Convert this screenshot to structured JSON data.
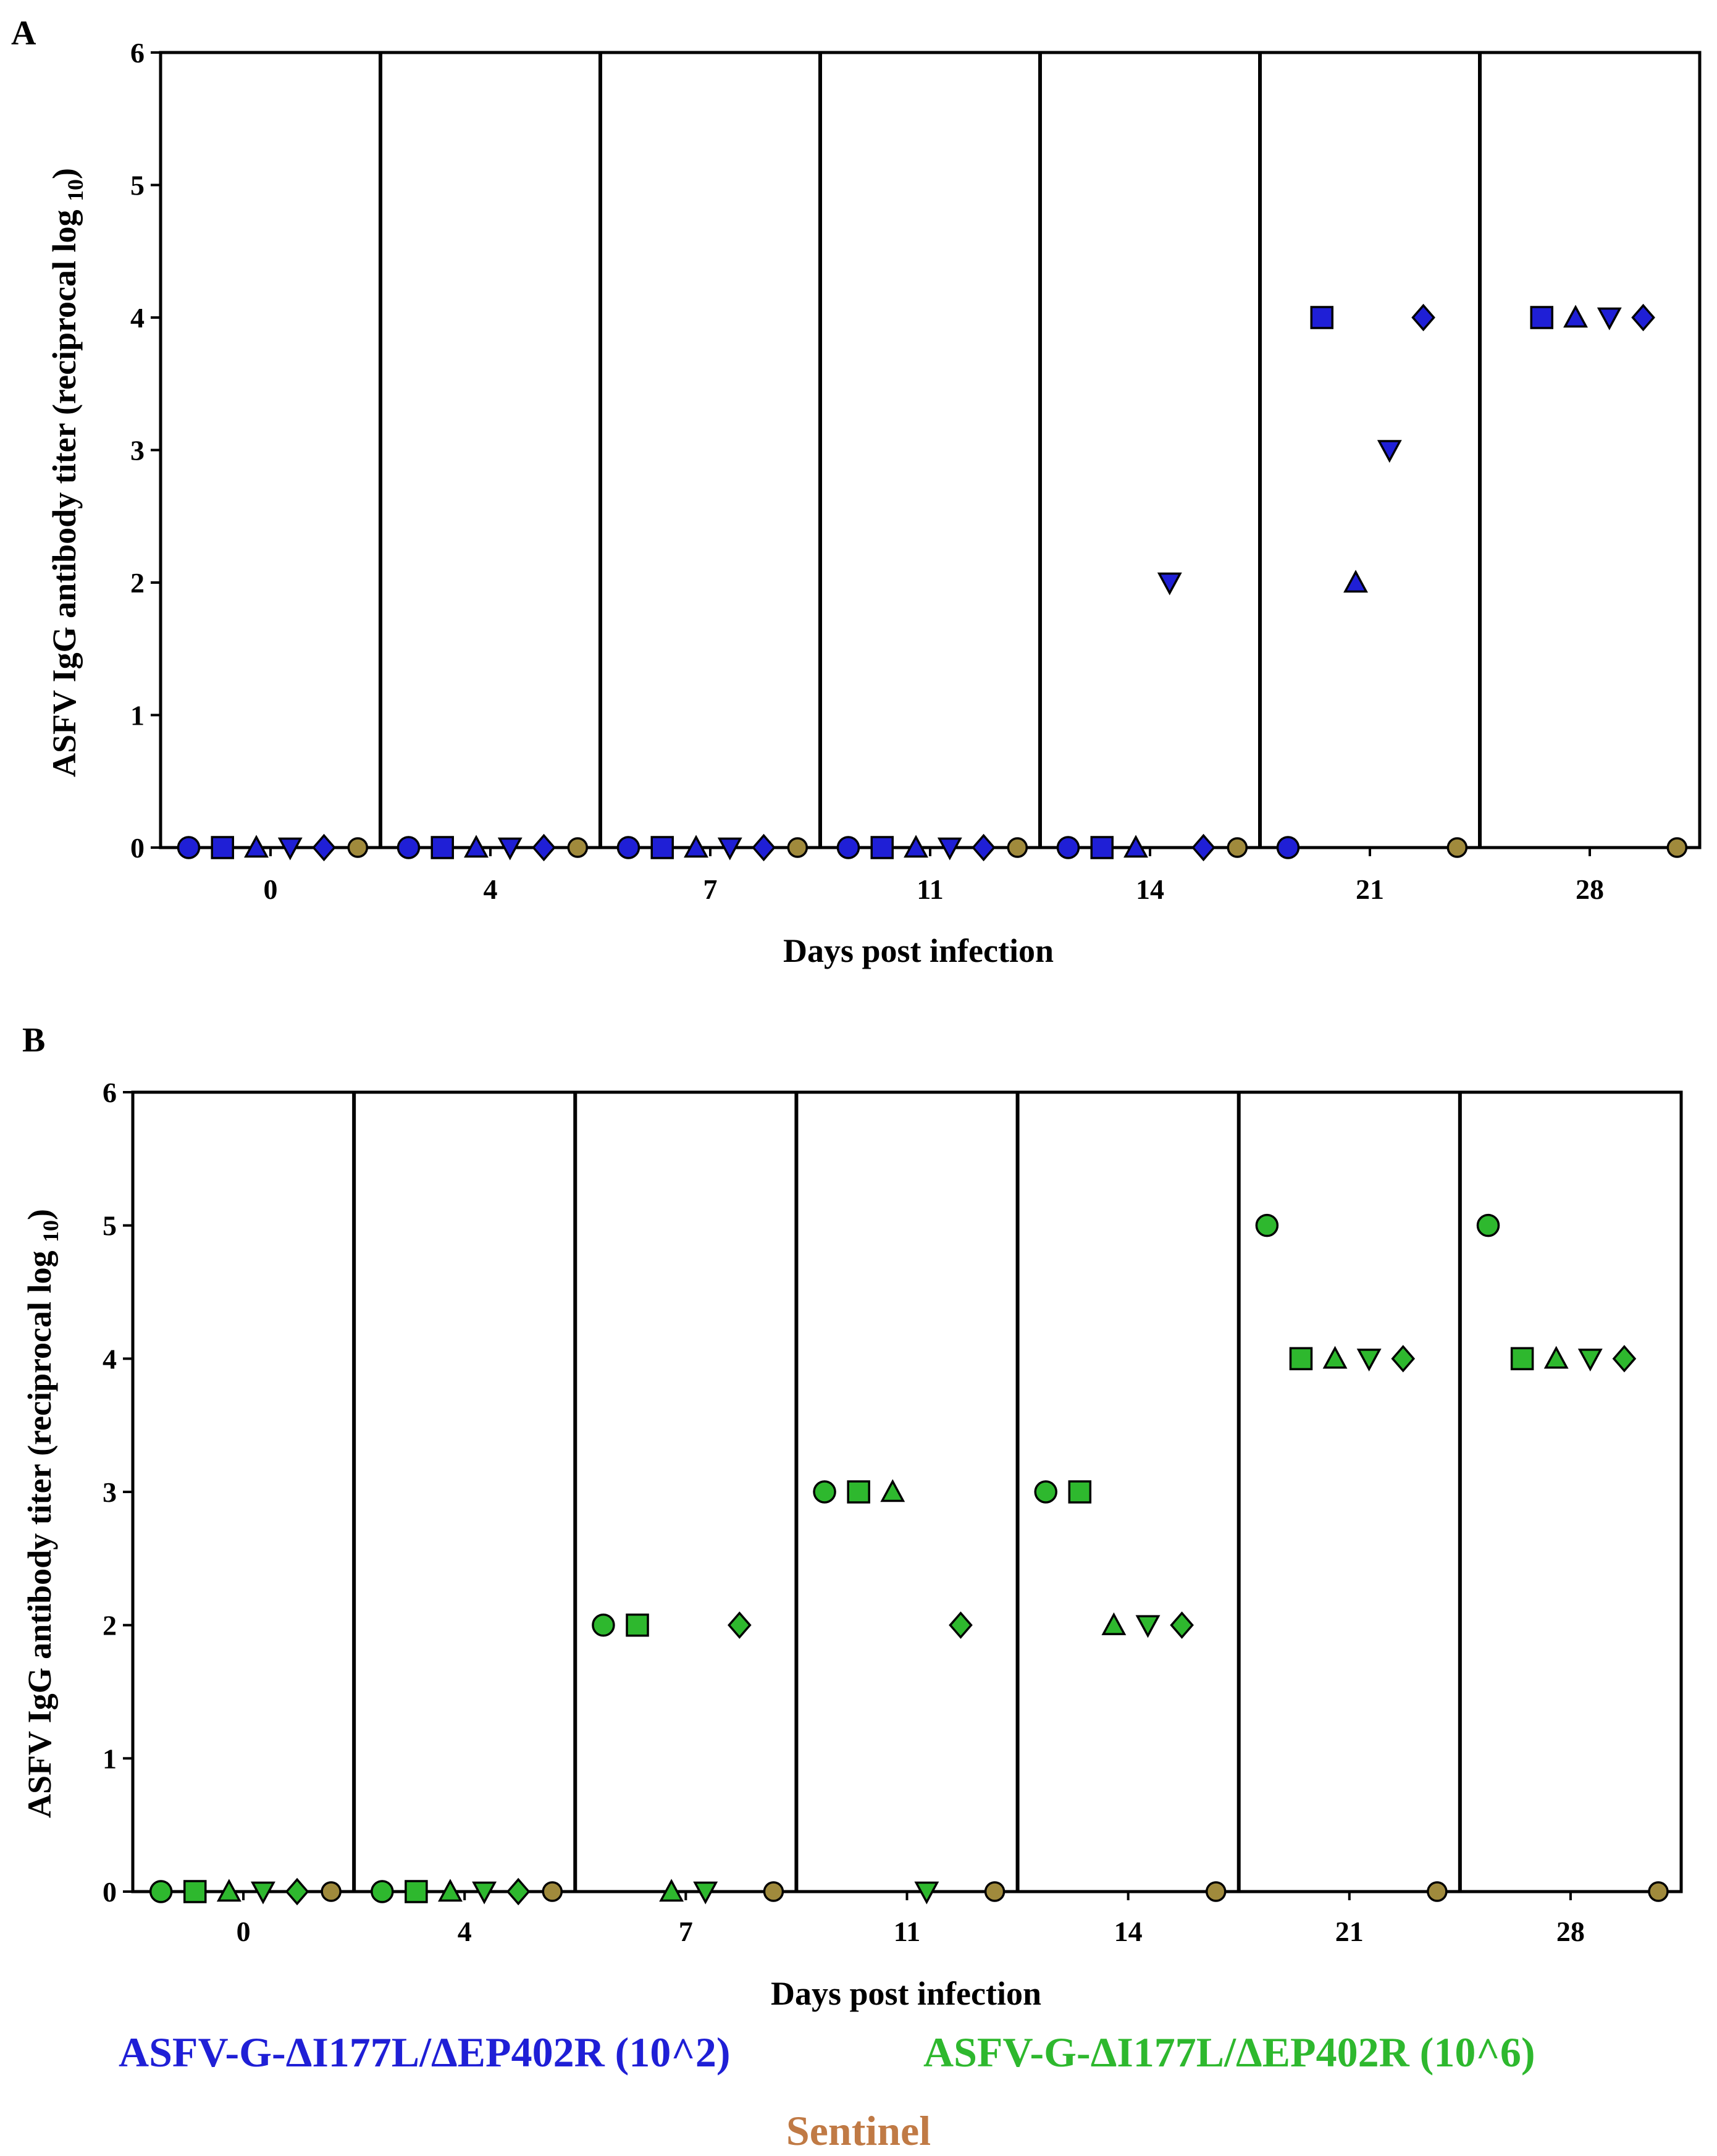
{
  "chart_data": [
    {
      "panel": "A",
      "type": "scatter",
      "ylabel": "ASFV IgG  antibody titer (reciprocal log 10)",
      "ylabel_main": "ASFV IgG  antibody titer (reciprocal log ",
      "ylabel_sub": "10",
      "ylabel_close": ")",
      "xlabel": "Days post infection",
      "ylim": [
        0,
        6
      ],
      "yticks": [
        "0",
        "1",
        "2",
        "3",
        "4",
        "5",
        "6"
      ],
      "categories": [
        "0",
        "4",
        "7",
        "11",
        "14",
        "21",
        "28"
      ],
      "group": "ASFV-G-ΔI177L/ΔEP402R (10^2)",
      "color": "#1f1fd6",
      "markers": [
        "circle",
        "square",
        "triangle-up",
        "triangle-down",
        "diamond"
      ],
      "animals": [
        [
          0,
          0,
          0,
          0,
          0,
          0,
          null
        ],
        [
          0,
          0,
          0,
          0,
          0,
          4,
          4
        ],
        [
          0,
          0,
          0,
          0,
          0,
          2,
          4
        ],
        [
          0,
          0,
          0,
          0,
          2,
          3,
          4
        ],
        [
          0,
          0,
          0,
          0,
          0,
          4,
          4
        ]
      ],
      "sentinel": [
        0,
        0,
        0,
        0,
        0,
        0,
        0
      ]
    },
    {
      "panel": "B",
      "type": "scatter",
      "ylabel": "ASFV IgG  antibody titer (reciprocal log 10)",
      "ylabel_main": "ASFV IgG  antibody titer (reciprocal log ",
      "ylabel_sub": "10",
      "ylabel_close": ")",
      "xlabel": "Days post infection",
      "ylim": [
        0,
        6
      ],
      "yticks": [
        "0",
        "1",
        "2",
        "3",
        "4",
        "5",
        "6"
      ],
      "categories": [
        "0",
        "4",
        "7",
        "11",
        "14",
        "21",
        "28"
      ],
      "group": "ASFV-G-ΔI177L/ΔEP402R (10^6)",
      "color": "#2eb82e",
      "markers": [
        "circle",
        "square",
        "triangle-up",
        "triangle-down",
        "diamond"
      ],
      "animals": [
        [
          0,
          0,
          2,
          3,
          3,
          5,
          5
        ],
        [
          0,
          0,
          2,
          3,
          3,
          4,
          4
        ],
        [
          0,
          0,
          0,
          3,
          2,
          4,
          4
        ],
        [
          0,
          0,
          0,
          0,
          2,
          4,
          4
        ],
        [
          0,
          0,
          2,
          2,
          2,
          4,
          4
        ]
      ],
      "sentinel": [
        0,
        0,
        0,
        0,
        0,
        0,
        0
      ]
    }
  ],
  "legend": {
    "low_dose": "ASFV-G-ΔI177L/ΔEP402R (10^2)",
    "high_dose": "ASFV-G-ΔI177L/ΔEP402R (10^6)",
    "sentinel": "Sentinel"
  },
  "colors": {
    "low_dose": "#1f1fd6",
    "high_dose": "#2eb82e",
    "sentinel": "#a08a3c",
    "legend_sentinel": "#c07a45",
    "axis": "#000000"
  }
}
